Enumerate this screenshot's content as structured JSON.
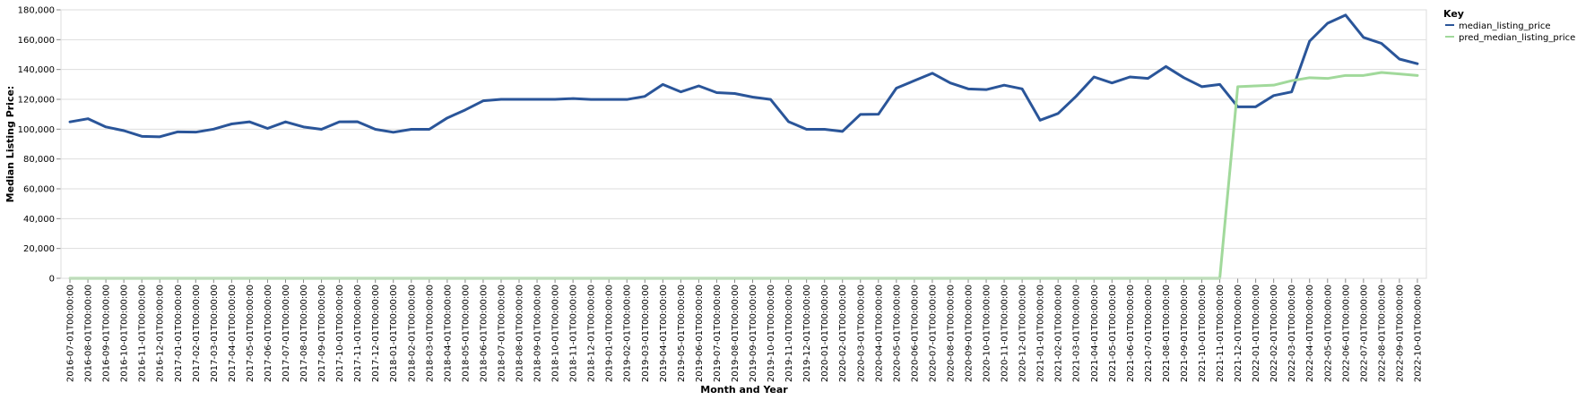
{
  "chart_data": {
    "type": "line",
    "xlabel": "Month and Year",
    "ylabel": "Median Listing Price:",
    "ylim": [
      0,
      180000
    ],
    "y_ticks": [
      0,
      20000,
      40000,
      60000,
      80000,
      100000,
      120000,
      140000,
      160000,
      180000
    ],
    "y_tick_labels": [
      "0",
      "20,000",
      "40,000",
      "60,000",
      "80,000",
      "100,000",
      "120,000",
      "140,000",
      "160,000",
      "180,000"
    ],
    "grid": true,
    "legend": {
      "title": "Key",
      "placement": "top-right"
    },
    "x": [
      "2016-07-01T00:00:00",
      "2016-08-01T00:00:00",
      "2016-09-01T00:00:00",
      "2016-10-01T00:00:00",
      "2016-11-01T00:00:00",
      "2016-12-01T00:00:00",
      "2017-01-01T00:00:00",
      "2017-02-01T00:00:00",
      "2017-03-01T00:00:00",
      "2017-04-01T00:00:00",
      "2017-05-01T00:00:00",
      "2017-06-01T00:00:00",
      "2017-07-01T00:00:00",
      "2017-08-01T00:00:00",
      "2017-09-01T00:00:00",
      "2017-10-01T00:00:00",
      "2017-11-01T00:00:00",
      "2017-12-01T00:00:00",
      "2018-01-01T00:00:00",
      "2018-02-01T00:00:00",
      "2018-03-01T00:00:00",
      "2018-04-01T00:00:00",
      "2018-05-01T00:00:00",
      "2018-06-01T00:00:00",
      "2018-07-01T00:00:00",
      "2018-08-01T00:00:00",
      "2018-09-01T00:00:00",
      "2018-10-01T00:00:00",
      "2018-11-01T00:00:00",
      "2018-12-01T00:00:00",
      "2019-01-01T00:00:00",
      "2019-02-01T00:00:00",
      "2019-03-01T00:00:00",
      "2019-04-01T00:00:00",
      "2019-05-01T00:00:00",
      "2019-06-01T00:00:00",
      "2019-07-01T00:00:00",
      "2019-08-01T00:00:00",
      "2019-09-01T00:00:00",
      "2019-10-01T00:00:00",
      "2019-11-01T00:00:00",
      "2019-12-01T00:00:00",
      "2020-01-01T00:00:00",
      "2020-02-01T00:00:00",
      "2020-03-01T00:00:00",
      "2020-04-01T00:00:00",
      "2020-05-01T00:00:00",
      "2020-06-01T00:00:00",
      "2020-07-01T00:00:00",
      "2020-08-01T00:00:00",
      "2020-09-01T00:00:00",
      "2020-10-01T00:00:00",
      "2020-11-01T00:00:00",
      "2020-12-01T00:00:00",
      "2021-01-01T00:00:00",
      "2021-02-01T00:00:00",
      "2021-03-01T00:00:00",
      "2021-04-01T00:00:00",
      "2021-05-01T00:00:00",
      "2021-06-01T00:00:00",
      "2021-07-01T00:00:00",
      "2021-08-01T00:00:00",
      "2021-09-01T00:00:00",
      "2021-10-01T00:00:00",
      "2021-11-01T00:00:00",
      "2021-12-01T00:00:00",
      "2022-01-01T00:00:00",
      "2022-02-01T00:00:00",
      "2022-03-01T00:00:00",
      "2022-04-01T00:00:00",
      "2022-05-01T00:00:00",
      "2022-06-01T00:00:00",
      "2022-07-01T00:00:00",
      "2022-08-01T00:00:00",
      "2022-09-01T00:00:00",
      "2022-10-01T00:00:00"
    ],
    "series": [
      {
        "name": "median_listing_price",
        "color": "#2a5599",
        "values": [
          104900,
          107000,
          101500,
          99000,
          95200,
          94900,
          98200,
          98000,
          100000,
          103500,
          104900,
          100500,
          104900,
          101500,
          99900,
          104900,
          105000,
          99900,
          97900,
          99900,
          99900,
          107500,
          112900,
          119000,
          120000,
          120000,
          120000,
          120000,
          120500,
          119900,
          119900,
          119900,
          122000,
          130000,
          125000,
          129000,
          124500,
          123900,
          121500,
          119900,
          105000,
          99900,
          99900,
          98500,
          109900,
          110000,
          127500,
          132500,
          137500,
          131000,
          127000,
          126500,
          129500,
          127000,
          106000,
          110500,
          122000,
          135000,
          131000,
          135000,
          134000,
          142000,
          134500,
          128500,
          130000,
          115000,
          115000,
          122500,
          125000,
          159000,
          171000,
          176500,
          161500,
          157500,
          147000,
          143900
        ]
      },
      {
        "name": "pred_median_listing_price",
        "color": "#a1d99b",
        "values": [
          0,
          0,
          0,
          0,
          0,
          0,
          0,
          0,
          0,
          0,
          0,
          0,
          0,
          0,
          0,
          0,
          0,
          0,
          0,
          0,
          0,
          0,
          0,
          0,
          0,
          0,
          0,
          0,
          0,
          0,
          0,
          0,
          0,
          0,
          0,
          0,
          0,
          0,
          0,
          0,
          0,
          0,
          0,
          0,
          0,
          0,
          0,
          0,
          0,
          0,
          0,
          0,
          0,
          0,
          0,
          0,
          0,
          0,
          0,
          0,
          0,
          0,
          0,
          0,
          0,
          128500,
          129000,
          129500,
          132500,
          134500,
          134000,
          136000,
          136000,
          138000,
          137000,
          136000
        ]
      }
    ]
  }
}
